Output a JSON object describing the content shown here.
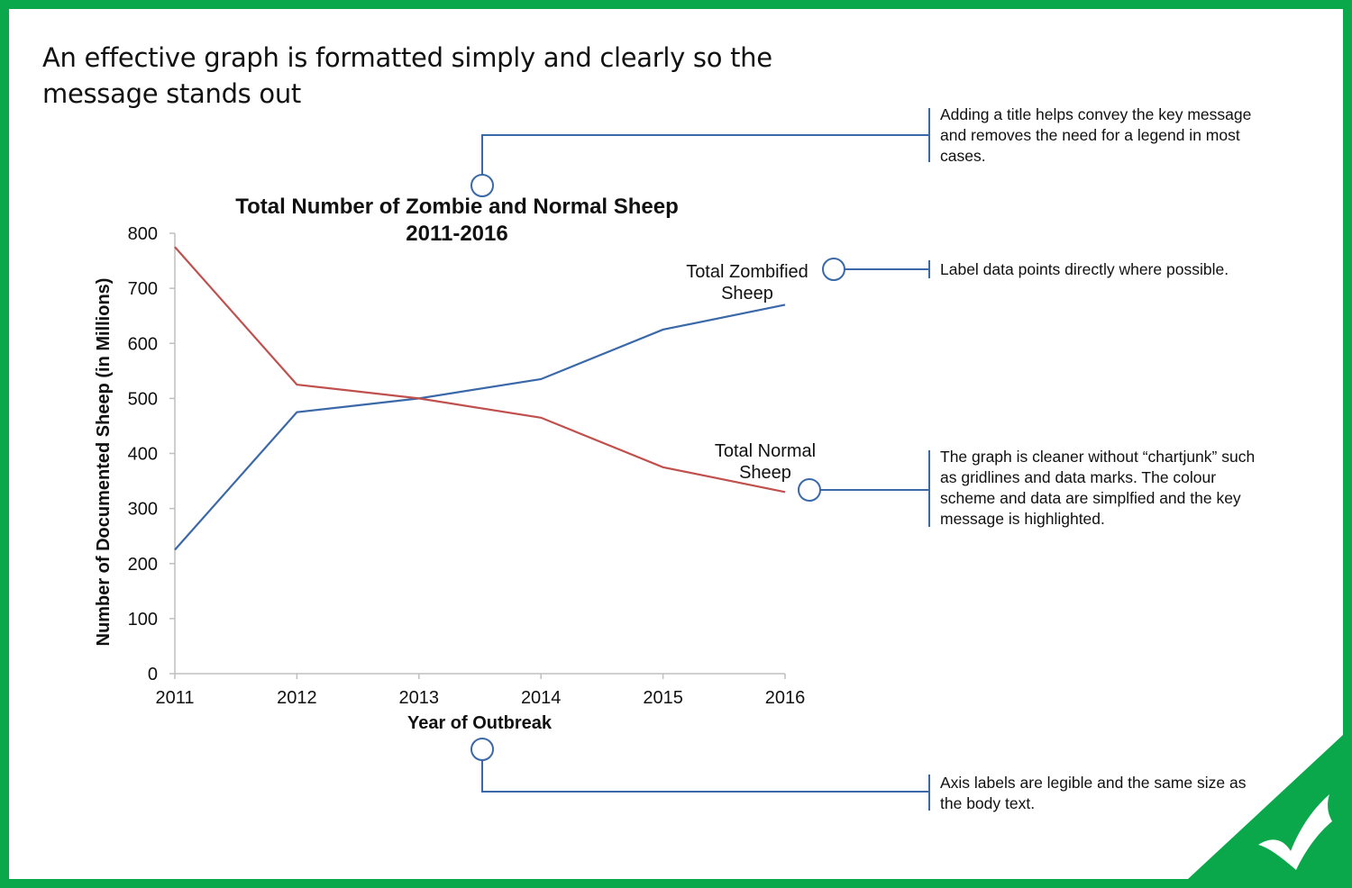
{
  "heading": "An effective graph is formatted simply and clearly so the message stands out",
  "annotations": [
    {
      "id": "title",
      "text": "Adding a title helps convey the key message and removes the need for a legend in most cases."
    },
    {
      "id": "labels",
      "text": "Label data points directly where possible."
    },
    {
      "id": "clean",
      "text": "The graph is cleaner without “chartjunk” such as gridlines and data marks. The colour scheme and data are simplfied and the key message is highlighted."
    },
    {
      "id": "axis",
      "text": "Axis labels are legible and the same size as the body text."
    }
  ],
  "colors": {
    "border": "#0aa84a",
    "zombie": "#3a68a8",
    "normal": "#c0504d",
    "callout": "#3a68a8",
    "axis": "#bfbfbf"
  },
  "chart_data": {
    "type": "line",
    "title": "Total Number of Zombie and Normal Sheep",
    "subtitle": "2011-2016",
    "xlabel": "Year of Outbreak",
    "ylabel": "Number of Documented Sheep (in Millions)",
    "categories": [
      "2011",
      "2012",
      "2013",
      "2014",
      "2015",
      "2016"
    ],
    "yticks": [
      "0",
      "100",
      "200",
      "300",
      "400",
      "500",
      "600",
      "700",
      "800"
    ],
    "ylim": [
      0,
      800
    ],
    "grid": false,
    "legend": "none",
    "series": [
      {
        "name": "Total Zombified Sheep",
        "label_lines": [
          "Total Zombified",
          "Sheep"
        ],
        "values": [
          225,
          475,
          500,
          535,
          625,
          670
        ]
      },
      {
        "name": "Total Normal Sheep",
        "label_lines": [
          "Total Normal",
          "Sheep"
        ],
        "values": [
          775,
          525,
          500,
          465,
          375,
          330
        ]
      }
    ]
  }
}
